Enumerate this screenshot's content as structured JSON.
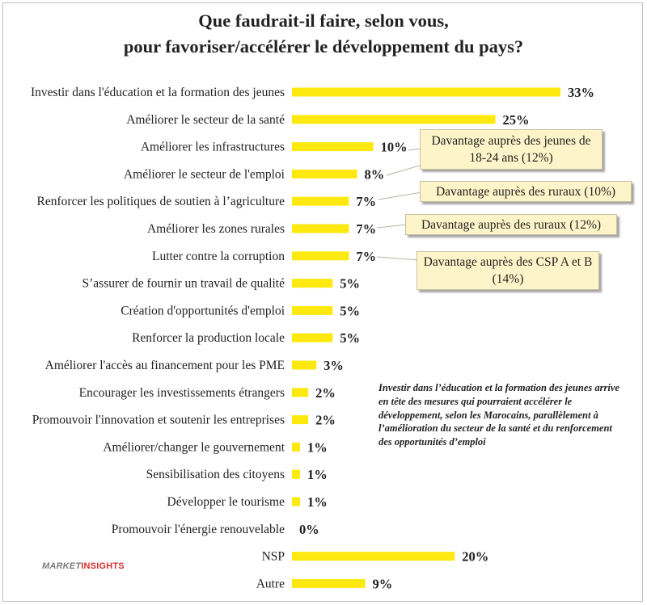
{
  "title": {
    "line1": "Que faudrait-il faire, selon vous,",
    "line2": "pour favoriser/accélérer le développement du pays?"
  },
  "chart_data": {
    "type": "bar",
    "orientation": "horizontal",
    "categories": [
      "Investir dans l'éducation et la formation des jeunes",
      "Améliorer le secteur de la santé",
      "Améliorer les infrastructures",
      "Améliorer le secteur de l'emploi",
      "Renforcer les politiques de soutien à l’agriculture",
      "Améliorer les zones rurales",
      "Lutter contre la corruption",
      "S’assurer de fournir un travail de qualité",
      "Création d'opportunités d'emploi",
      "Renforcer la production locale",
      "Améliorer l'accès au financement pour les PME",
      "Encourager les investissements étrangers",
      "Promouvoir l'innovation et soutenir les entreprises",
      "Améliorer/changer le gouvernement",
      "Sensibilisation des citoyens",
      "Développer le tourisme",
      "Promouvoir l'énergie renouvelable",
      "NSP",
      "Autre"
    ],
    "values": [
      33,
      25,
      10,
      8,
      7,
      7,
      7,
      5,
      5,
      5,
      3,
      2,
      2,
      1,
      1,
      1,
      0,
      20,
      9
    ],
    "value_labels": [
      "33%",
      "25%",
      "10%",
      "8%",
      "7%",
      "7%",
      "7%",
      "5%",
      "5%",
      "5%",
      "3%",
      "2%",
      "2%",
      "1%",
      "1%",
      "1%",
      "0%",
      "20%",
      "9%"
    ],
    "bar_color": "#fde910",
    "grid": false,
    "legend": "none"
  },
  "callouts": [
    {
      "text": "Davantage auprès des jeunes de 18-24 ans (12%)",
      "category_index": 2
    },
    {
      "text": "Davantage auprès des ruraux (10%)",
      "category_index": 4
    },
    {
      "text": "Davantage auprès des ruraux (12%)",
      "category_index": 5
    },
    {
      "text": "Davantage auprès des CSP A et B (14%)",
      "category_index": 6
    }
  ],
  "note": "Investir dans l’éducation et la formation des jeunes arrive en tête des mesures qui pourraient accélérer le développement, selon les Marocains, parallèlement à l’amélioration du secteur de la santé et du renforcement des opportunités d’emploi",
  "logo": {
    "part1": "MARKET",
    "part2": "INSIGHTS"
  },
  "colors": {
    "callout_bg": "#fdf5c9",
    "logo_red": "#d0312d"
  }
}
